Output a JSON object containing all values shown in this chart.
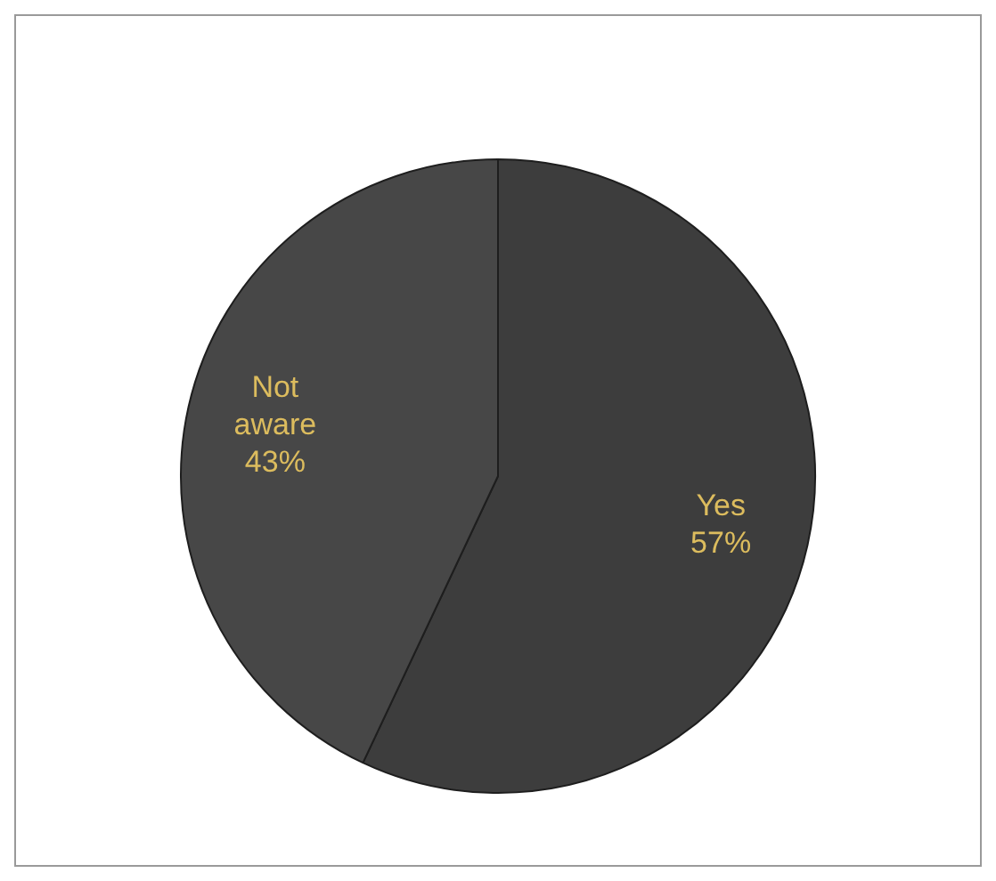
{
  "chart_data": {
    "type": "pie",
    "categories": [
      "Yes",
      "Not aware"
    ],
    "values": [
      57,
      43
    ],
    "colors": [
      "#3d3d3d",
      "#474747"
    ],
    "value_labels": [
      "57%",
      "43%"
    ],
    "legend": false
  }
}
